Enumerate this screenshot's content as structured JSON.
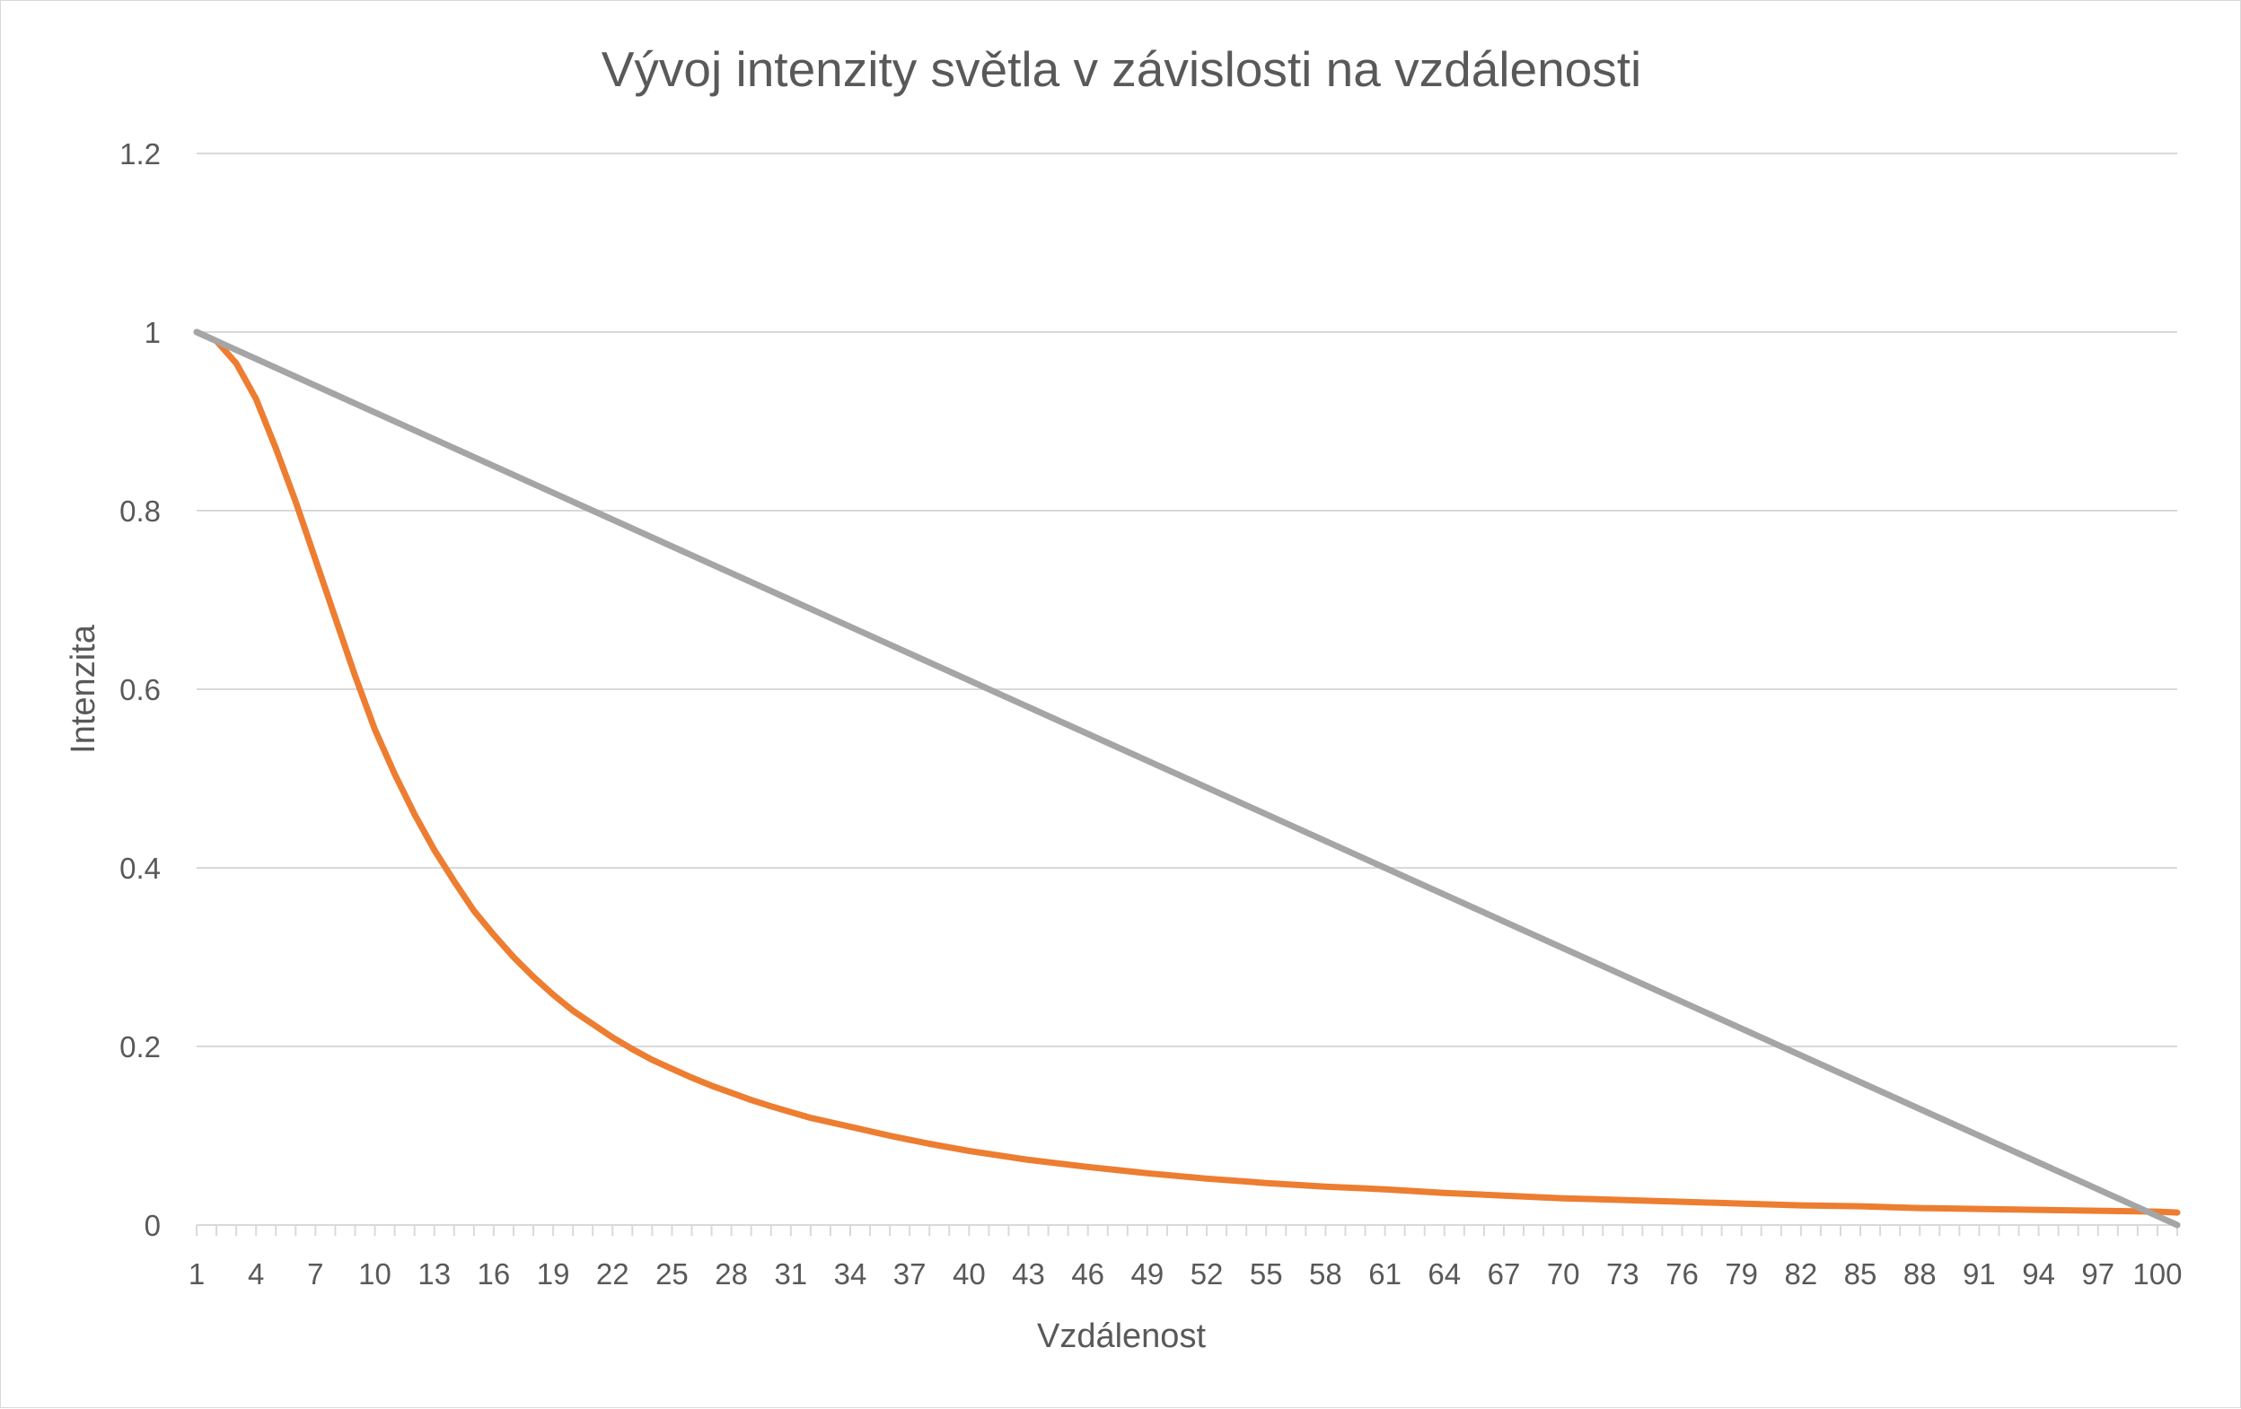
{
  "chart_data": {
    "type": "line",
    "title": "Vývoj intenzity světla v závislosti na vzdálenosti",
    "xlabel": "Vzdálenost",
    "ylabel": "Intenzita",
    "x_range": [
      1,
      101
    ],
    "x_tick_labels": [
      "1",
      "4",
      "7",
      "10",
      "13",
      "16",
      "19",
      "22",
      "25",
      "28",
      "31",
      "34",
      "37",
      "40",
      "43",
      "46",
      "49",
      "52",
      "55",
      "58",
      "61",
      "64",
      "67",
      "70",
      "73",
      "76",
      "79",
      "82",
      "85",
      "88",
      "91",
      "94",
      "97",
      "100"
    ],
    "ylim": [
      0,
      1.2
    ],
    "y_ticks": [
      0,
      0.2,
      0.4,
      0.6,
      0.8,
      1,
      1.2
    ],
    "y_tick_labels": [
      "0",
      "0.2",
      "0.4",
      "0.6",
      "0.8",
      "1",
      "1.2"
    ],
    "grid": "horizontal",
    "legend": "none",
    "series": [
      {
        "color": "#ed7d31",
        "x": [
          1,
          2,
          3,
          4,
          5,
          6,
          7,
          8,
          9,
          10,
          11,
          12,
          13,
          14,
          15,
          16,
          17,
          18,
          19,
          20,
          21,
          22,
          23,
          24,
          25,
          26,
          27,
          28,
          29,
          30,
          32,
          34,
          36,
          38,
          40,
          43,
          46,
          49,
          52,
          55,
          58,
          61,
          64,
          67,
          70,
          73,
          76,
          79,
          82,
          85,
          88,
          91,
          94,
          97,
          100,
          101
        ],
        "values": [
          1.0,
          0.99,
          0.965,
          0.925,
          0.87,
          0.81,
          0.745,
          0.68,
          0.615,
          0.555,
          0.505,
          0.46,
          0.42,
          0.385,
          0.352,
          0.325,
          0.3,
          0.278,
          0.258,
          0.24,
          0.225,
          0.21,
          0.197,
          0.185,
          0.175,
          0.165,
          0.156,
          0.148,
          0.14,
          0.133,
          0.12,
          0.11,
          0.1,
          0.091,
          0.083,
          0.073,
          0.065,
          0.058,
          0.052,
          0.047,
          0.043,
          0.04,
          0.036,
          0.033,
          0.03,
          0.028,
          0.026,
          0.024,
          0.022,
          0.021,
          0.019,
          0.018,
          0.017,
          0.016,
          0.015,
          0.014
        ]
      },
      {
        "color": "#a5a5a5",
        "x": [
          1,
          101
        ],
        "values": [
          1.0,
          0.0
        ]
      }
    ]
  }
}
